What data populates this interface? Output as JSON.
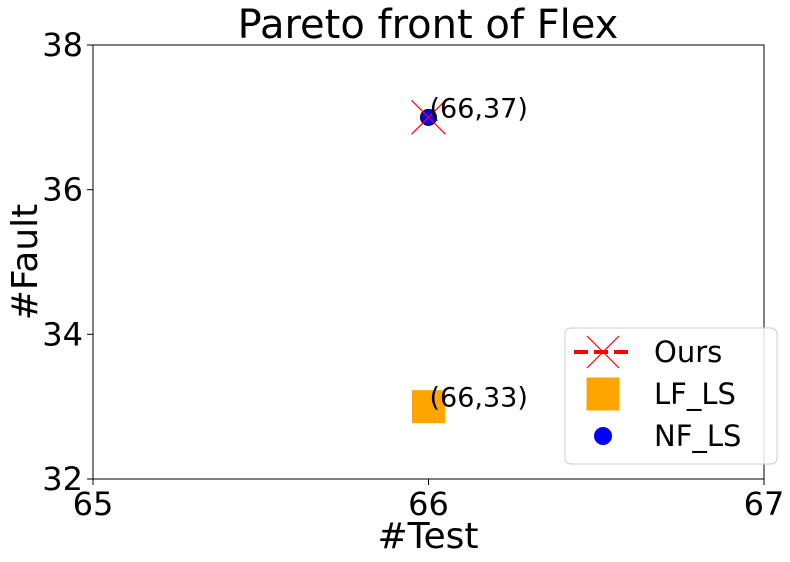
{
  "chart_data": {
    "type": "scatter",
    "title": "Pareto front of Flex",
    "xlabel": "#Test",
    "ylabel": "#Fault",
    "xlim": [
      65,
      67
    ],
    "ylim": [
      32,
      38
    ],
    "xticks": [
      65,
      66,
      67
    ],
    "yticks": [
      32,
      34,
      36,
      38
    ],
    "grid": false,
    "legend_position": "lower-right",
    "series": [
      {
        "name": "Ours",
        "marker": "x",
        "line": "dashed",
        "color": "#ff0000",
        "points": [
          {
            "x": 66,
            "y": 37
          }
        ]
      },
      {
        "name": "LF_LS",
        "marker": "square",
        "color": "#ffa500",
        "points": [
          {
            "x": 66,
            "y": 33
          }
        ]
      },
      {
        "name": "NF_LS",
        "marker": "circle",
        "color": "#0000ff",
        "points": [
          {
            "x": 66,
            "y": 37
          }
        ]
      }
    ],
    "annotations": [
      {
        "text": "(66,37)",
        "x": 66,
        "y": 37
      },
      {
        "text": "(66,33)",
        "x": 66,
        "y": 33
      }
    ]
  }
}
